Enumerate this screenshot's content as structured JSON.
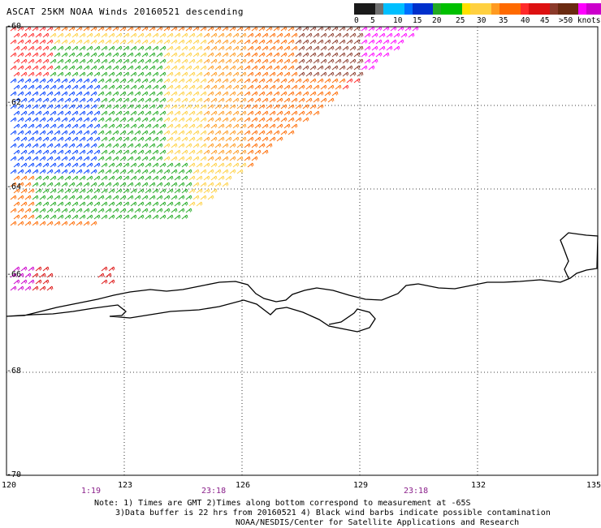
{
  "title": "ASCAT 25KM NOAA Winds 20160521 descending",
  "legend": {
    "colors": [
      "#1a1a1a",
      "#707070",
      "#00bfff",
      "#0070ff",
      "#0030cc",
      "#22aa22",
      "#00c000",
      "#ffe000",
      "#ffd040",
      "#ff9a20",
      "#ff6a00",
      "#ff2a2a",
      "#dd1111",
      "#8b3a2a",
      "#6a2a10",
      "#ff00ff",
      "#cc00cc",
      "#7a00aa"
    ],
    "labels": [
      "0",
      "5",
      "10",
      "15",
      "20",
      "25",
      "30",
      "35",
      "40",
      "45",
      ">50 knots"
    ],
    "units": "knots"
  },
  "map": {
    "lat_labels": [
      "-60",
      "-62",
      "-64",
      "-66",
      "-68",
      "-70"
    ],
    "lon_labels": [
      "120",
      "123",
      "126",
      "129",
      "132",
      "135"
    ],
    "time_labels": [
      "1:19",
      "23:18",
      "23:18"
    ]
  },
  "notes": {
    "line1": "Note: 1) Times are GMT 2)Times along bottom correspond to measurement at -65S",
    "line2": "3)Data buffer is 22 hrs from 20160521 4) Black wind barbs indicate possible contamination",
    "line3": "NOAA/NESDIS/Center for Satellite Applications and Research"
  }
}
